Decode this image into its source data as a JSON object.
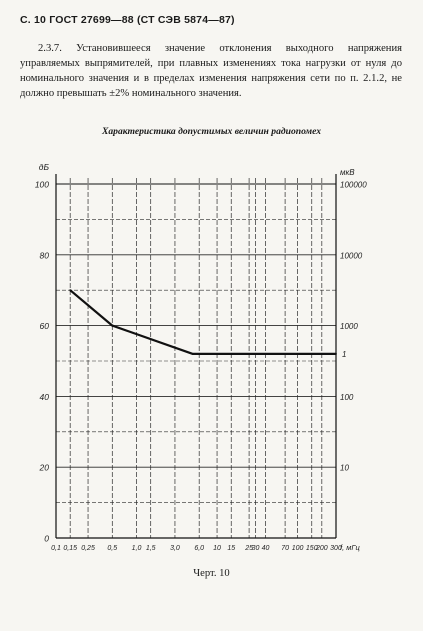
{
  "header": "С. 10 ГОСТ 27699—88 (СТ СЭВ 5874—87)",
  "paragraph": "2.3.7. Установившееся значение отклонения выходного напряжения управляемых выпрямителей, при плавных изменениях тока нагрузки от нуля до номинального значения и в пределах изменения напряжения сети по п. 2.1.2, не должно превышать ±2% номинального значения.",
  "caption": "Черт. 10",
  "chart_data": {
    "type": "line",
    "title": "Характеристика допустимых величин радиопомех",
    "xlabel": "f, мГц",
    "ylabel_left": "дБ",
    "ylabel_right": "мкВ",
    "xlim": [
      0.1,
      300
    ],
    "ylim": [
      0,
      100
    ],
    "x_ticks": [
      0.1,
      0.15,
      0.25,
      0.5,
      1,
      1.5,
      3,
      6,
      10,
      15,
      25,
      30,
      40,
      70,
      100,
      150,
      200,
      300
    ],
    "x_tick_labels": [
      "0,1",
      "0,15",
      "0,25",
      "0,5",
      "1,0",
      "1,5",
      "3,0",
      "6,0",
      "10",
      "15",
      "25",
      "30",
      "40",
      "70",
      "100",
      "150",
      "200",
      "300"
    ],
    "y_ticks": [
      0,
      20,
      40,
      60,
      80,
      100
    ],
    "y_tick_labels": [
      "0",
      "20",
      "40",
      "60",
      "80",
      "100"
    ],
    "right_ticks": [
      {
        "db": 20,
        "label": "10"
      },
      {
        "db": 40,
        "label": "100"
      },
      {
        "db": 60,
        "label": "1000"
      },
      {
        "db": 80,
        "label": "10000"
      },
      {
        "db": 100,
        "label": "100000"
      }
    ],
    "series": [
      {
        "x": [
          0.15,
          0.5,
          5,
          30,
          300
        ],
        "y": [
          70,
          60,
          52,
          52,
          52
        ]
      }
    ],
    "grid": true,
    "legend": "none",
    "right_axis_marker": "1"
  }
}
